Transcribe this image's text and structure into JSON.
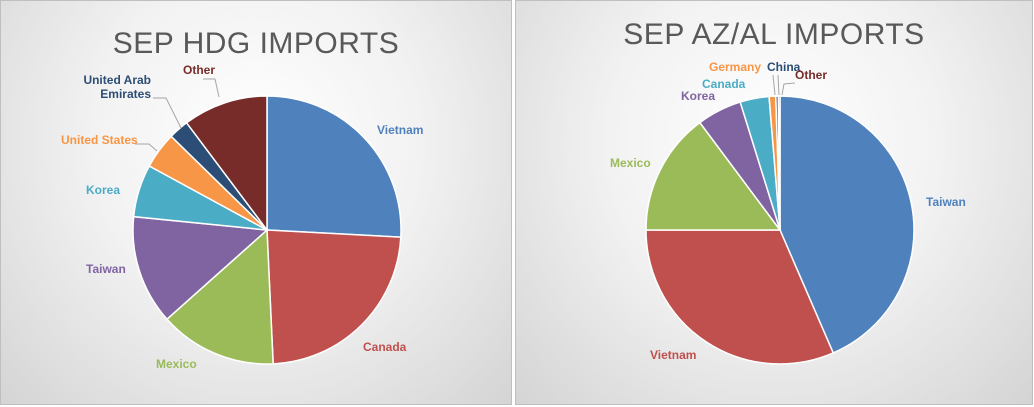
{
  "chart_data": [
    {
      "type": "pie",
      "title": "SEP HDG IMPORTS",
      "start_angle_deg": 0,
      "slices": [
        {
          "label": "Vietnam",
          "value": 26.5,
          "color": "#4f81bd"
        },
        {
          "label": "Canada",
          "value": 24.0,
          "color": "#c0504d"
        },
        {
          "label": "Mexico",
          "value": 14.5,
          "color": "#9bbb59"
        },
        {
          "label": "Taiwan",
          "value": 13.5,
          "color": "#8064a2"
        },
        {
          "label": "Korea",
          "value": 6.5,
          "color": "#4bacc6"
        },
        {
          "label": "United States",
          "value": 4.5,
          "color": "#f79646"
        },
        {
          "label": "United Arab Emirates",
          "value": 2.5,
          "color": "#2c4d75"
        },
        {
          "label": "Other",
          "value": 10.5,
          "color": "#772c2a"
        }
      ]
    },
    {
      "type": "pie",
      "title": "SEP AZ/AL IMPORTS",
      "start_angle_deg": 0,
      "slices": [
        {
          "label": "Taiwan",
          "value": 43.5,
          "color": "#4f81bd"
        },
        {
          "label": "Vietnam",
          "value": 31.5,
          "color": "#c0504d"
        },
        {
          "label": "Mexico",
          "value": 14.8,
          "color": "#9bbb59"
        },
        {
          "label": "Korea",
          "value": 5.4,
          "color": "#8064a2"
        },
        {
          "label": "Canada",
          "value": 3.5,
          "color": "#4bacc6"
        },
        {
          "label": "Germany",
          "value": 0.8,
          "color": "#f79646"
        },
        {
          "label": "China",
          "value": 0.3,
          "color": "#2c4d75"
        },
        {
          "label": "Other",
          "value": 0.2,
          "color": "#772c2a"
        }
      ]
    }
  ]
}
